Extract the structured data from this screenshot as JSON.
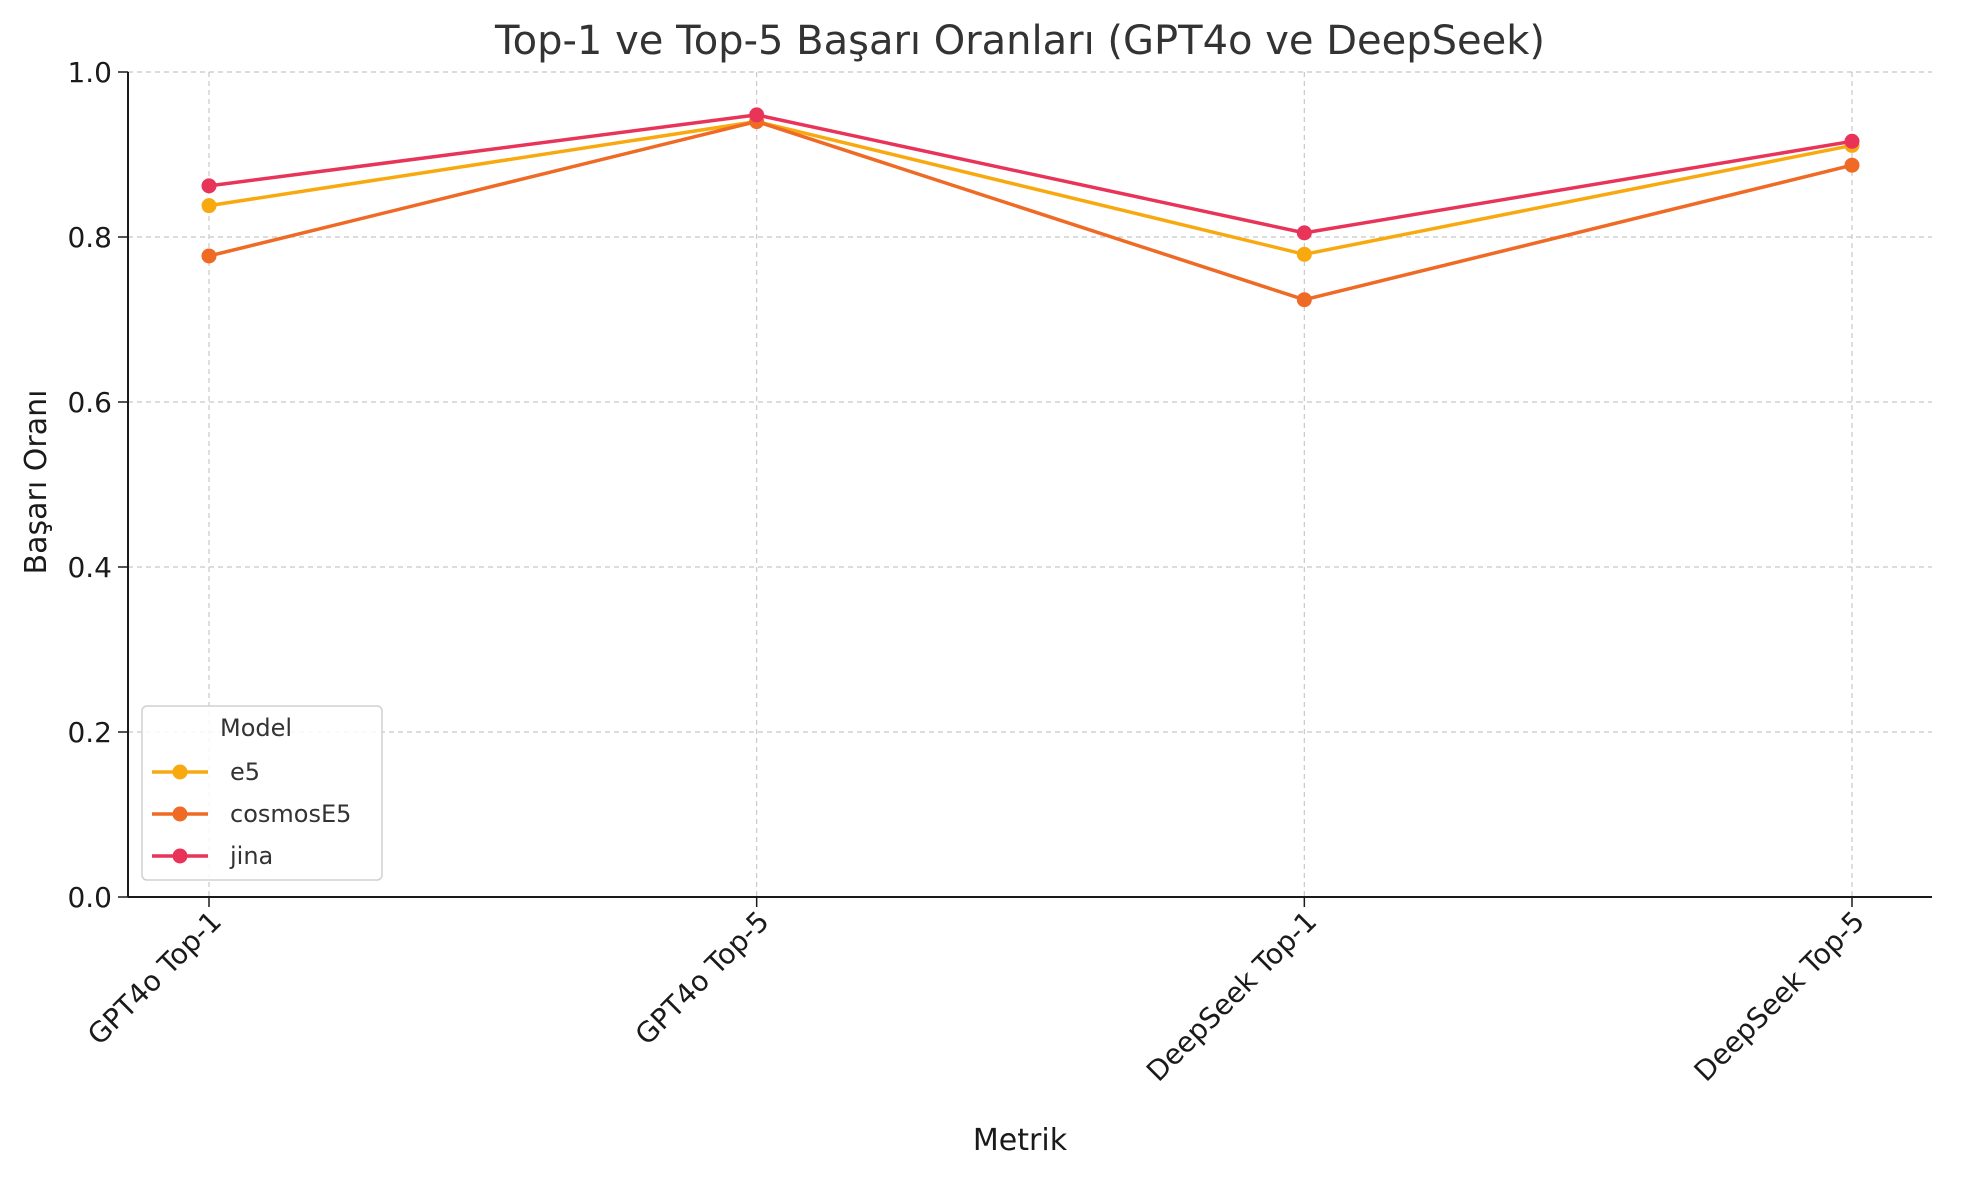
{
  "chart_data": {
    "type": "line",
    "title": "Top-1 ve Top-5 Başarı Oranları (GPT4o ve DeepSeek)",
    "xlabel": "Metrik",
    "ylabel": "Başarı Oranı",
    "categories": [
      "GPT4o Top-1",
      "GPT4o Top-5",
      "DeepSeek Top-1",
      "DeepSeek Top-5"
    ],
    "ylim": [
      0,
      1.0
    ],
    "yticks": [
      "0.0",
      "0.2",
      "0.4",
      "0.6",
      "0.8",
      "1.0"
    ],
    "grid": true,
    "legend": {
      "title": "Model",
      "position": "lower-left"
    },
    "series": [
      {
        "name": "e5",
        "color": "#f8a90f",
        "values": [
          0.838,
          0.94,
          0.779,
          0.911
        ]
      },
      {
        "name": "cosmosE5",
        "color": "#ee6a25",
        "values": [
          0.777,
          0.94,
          0.724,
          0.887
        ]
      },
      {
        "name": "jina",
        "color": "#e9345a",
        "values": [
          0.862,
          0.948,
          0.805,
          0.916
        ]
      }
    ]
  }
}
